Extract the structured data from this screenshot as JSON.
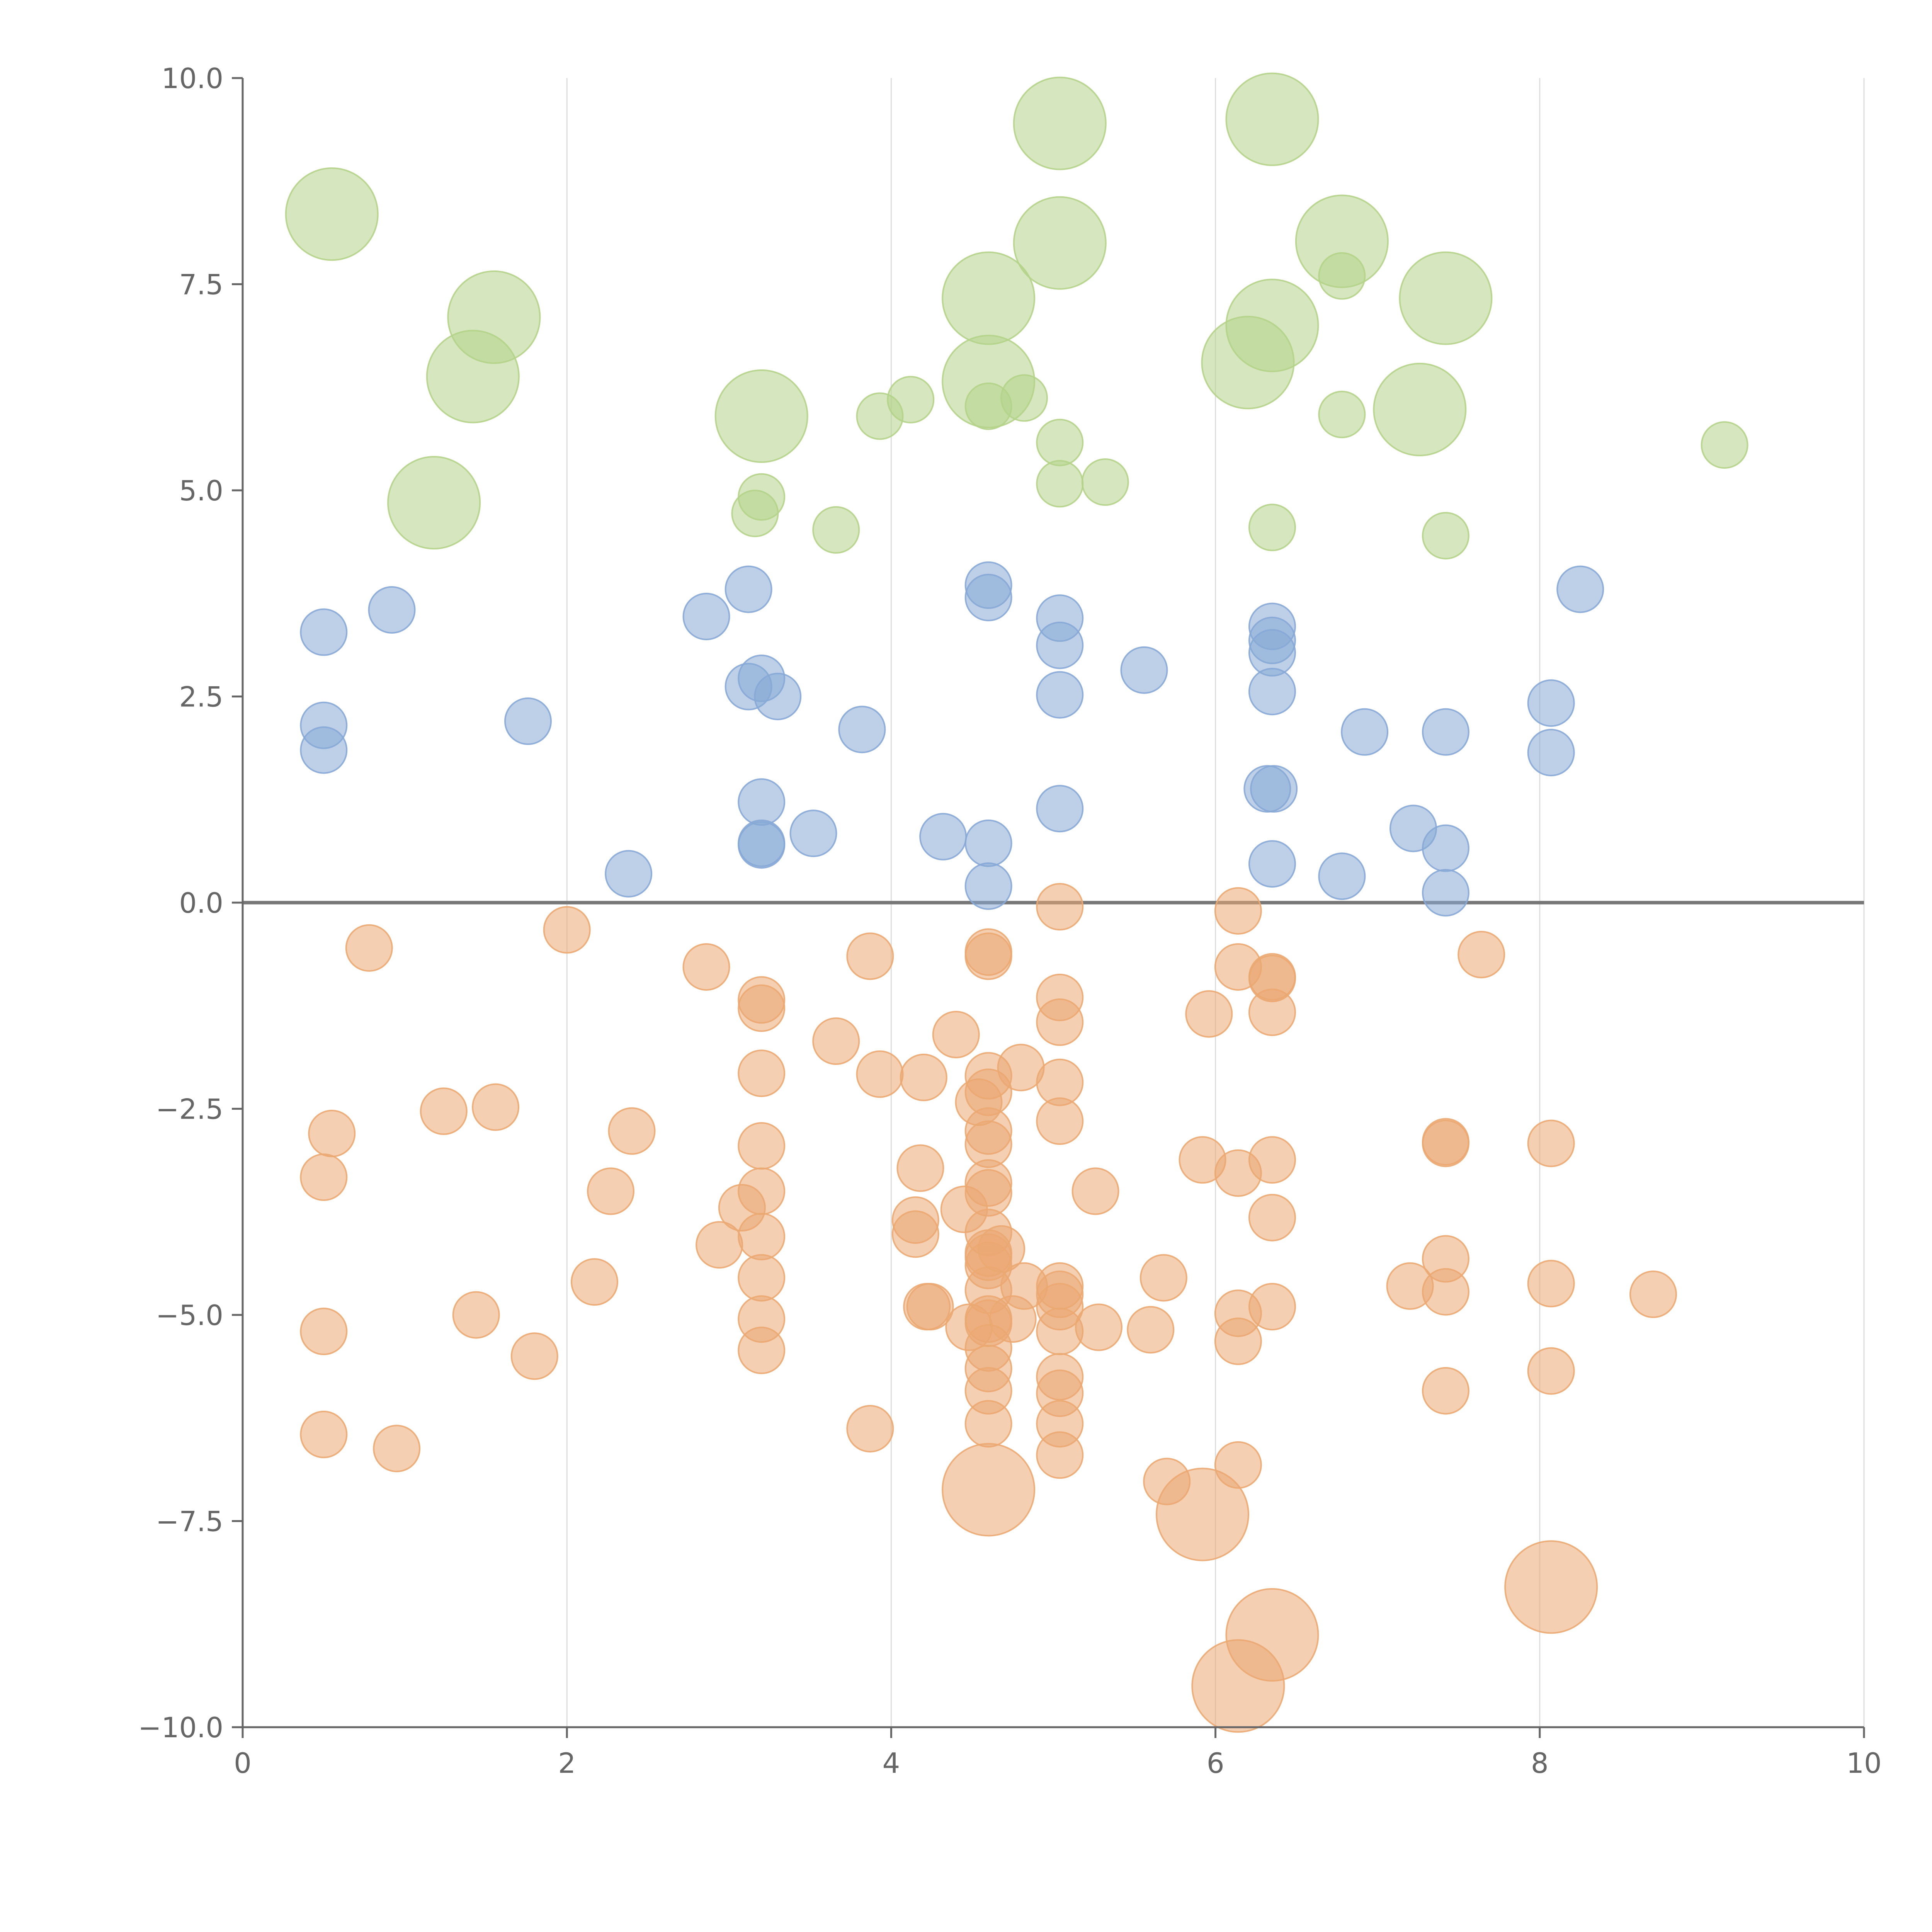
{
  "chart_data": {
    "type": "scatter",
    "title": "",
    "xlabel": "",
    "ylabel": "",
    "xlim": [
      0,
      10
    ],
    "ylim": [
      -10,
      10
    ],
    "x_ticks": [
      "0",
      "2",
      "4",
      "6",
      "8",
      "10"
    ],
    "y_ticks": [
      "10.0",
      "7.5",
      "5.0",
      "2.5",
      "0.0",
      "−2.5",
      "−5.0",
      "−7.5",
      "−10.0"
    ],
    "x_tick_values": [
      0,
      2,
      4,
      6,
      8,
      10
    ],
    "y_tick_values": [
      10,
      7.5,
      5,
      2.5,
      0,
      -2.5,
      -5,
      -7.5,
      -10
    ],
    "vertical_grid": true,
    "horizontal_grid": false,
    "zero_line": true,
    "colors": {
      "green": "#b5d38a",
      "blue": "#87a9d6",
      "orange": "#eba872"
    },
    "series": [
      {
        "color": "#b5d38a",
        "points": [
          [
            0.55,
            8.35,
            28
          ],
          [
            1.55,
            7.1,
            28
          ],
          [
            1.42,
            6.38,
            28
          ],
          [
            1.18,
            4.85,
            28
          ],
          [
            3.2,
            5.9,
            28
          ],
          [
            3.93,
            5.9,
            14
          ],
          [
            4.12,
            6.1,
            14
          ],
          [
            3.16,
            4.72,
            14
          ],
          [
            3.2,
            4.92,
            14
          ],
          [
            3.66,
            4.52,
            14
          ],
          [
            4.6,
            7.33,
            28
          ],
          [
            4.6,
            6.32,
            28
          ],
          [
            4.6,
            6.02,
            14
          ],
          [
            4.82,
            6.12,
            14
          ],
          [
            5.04,
            9.45,
            28
          ],
          [
            5.04,
            8.0,
            28
          ],
          [
            5.04,
            5.58,
            14
          ],
          [
            5.04,
            5.08,
            14
          ],
          [
            5.32,
            5.1,
            14
          ],
          [
            6.35,
            9.5,
            28
          ],
          [
            6.35,
            7.0,
            28
          ],
          [
            6.2,
            6.55,
            28
          ],
          [
            6.35,
            4.55,
            14
          ],
          [
            6.78,
            8.02,
            28
          ],
          [
            6.78,
            7.6,
            14
          ],
          [
            6.78,
            5.92,
            14
          ],
          [
            7.42,
            7.33,
            28
          ],
          [
            7.26,
            5.98,
            28
          ],
          [
            7.42,
            4.45,
            14
          ],
          [
            9.14,
            5.55,
            14
          ]
        ]
      },
      {
        "color": "#87a9d6",
        "points": [
          [
            0.5,
            3.28,
            14
          ],
          [
            0.5,
            2.15,
            14
          ],
          [
            0.5,
            1.85,
            14
          ],
          [
            0.92,
            3.55,
            14
          ],
          [
            1.76,
            2.2,
            14
          ],
          [
            2.38,
            0.35,
            14
          ],
          [
            2.86,
            3.47,
            14
          ],
          [
            3.12,
            3.8,
            14
          ],
          [
            3.12,
            2.62,
            14
          ],
          [
            3.2,
            2.72,
            14
          ],
          [
            3.3,
            2.5,
            14
          ],
          [
            3.2,
            1.22,
            14
          ],
          [
            3.2,
            0.7,
            14
          ],
          [
            3.2,
            0.72,
            14
          ],
          [
            3.52,
            0.84,
            14
          ],
          [
            3.82,
            2.1,
            14
          ],
          [
            4.32,
            0.8,
            14
          ],
          [
            4.6,
            3.85,
            14
          ],
          [
            4.6,
            3.7,
            14
          ],
          [
            4.6,
            0.72,
            14
          ],
          [
            4.6,
            0.2,
            14
          ],
          [
            5.04,
            3.45,
            14
          ],
          [
            5.04,
            3.12,
            14
          ],
          [
            5.04,
            2.52,
            14
          ],
          [
            5.04,
            1.14,
            14
          ],
          [
            5.56,
            2.82,
            14
          ],
          [
            6.35,
            3.35,
            14
          ],
          [
            6.35,
            3.18,
            14
          ],
          [
            6.35,
            3.03,
            14
          ],
          [
            6.35,
            2.56,
            14
          ],
          [
            6.32,
            1.38,
            14
          ],
          [
            6.36,
            1.38,
            14
          ],
          [
            6.35,
            0.47,
            14
          ],
          [
            6.78,
            0.32,
            14
          ],
          [
            6.92,
            2.07,
            14
          ],
          [
            7.22,
            0.9,
            14
          ],
          [
            7.42,
            2.07,
            14
          ],
          [
            7.42,
            0.66,
            14
          ],
          [
            7.42,
            0.12,
            14
          ],
          [
            8.07,
            2.42,
            14
          ],
          [
            8.07,
            1.82,
            14
          ],
          [
            8.25,
            3.8,
            14
          ]
        ]
      },
      {
        "color": "#eba872",
        "points": [
          [
            0.78,
            -0.55,
            14
          ],
          [
            0.55,
            -2.8,
            14
          ],
          [
            0.5,
            -3.33,
            14
          ],
          [
            0.5,
            -5.2,
            14
          ],
          [
            0.5,
            -6.45,
            14
          ],
          [
            0.95,
            -6.62,
            14
          ],
          [
            1.24,
            -2.53,
            14
          ],
          [
            1.56,
            -2.48,
            14
          ],
          [
            1.44,
            -5.0,
            14
          ],
          [
            1.8,
            -5.5,
            14
          ],
          [
            2.0,
            -0.33,
            14
          ],
          [
            2.4,
            -2.77,
            14
          ],
          [
            2.27,
            -3.5,
            14
          ],
          [
            2.17,
            -4.6,
            14
          ],
          [
            2.86,
            -0.78,
            14
          ],
          [
            2.94,
            -4.15,
            14
          ],
          [
            3.08,
            -3.7,
            14
          ],
          [
            3.2,
            -1.18,
            14
          ],
          [
            3.2,
            -1.28,
            14
          ],
          [
            3.2,
            -2.07,
            14
          ],
          [
            3.2,
            -2.95,
            14
          ],
          [
            3.2,
            -3.5,
            14
          ],
          [
            3.2,
            -4.05,
            14
          ],
          [
            3.2,
            -4.55,
            14
          ],
          [
            3.2,
            -5.05,
            14
          ],
          [
            3.2,
            -5.43,
            14
          ],
          [
            3.66,
            -1.68,
            14
          ],
          [
            3.87,
            -0.65,
            14
          ],
          [
            3.93,
            -2.08,
            14
          ],
          [
            3.87,
            -6.38,
            14
          ],
          [
            4.15,
            -3.85,
            14
          ],
          [
            4.15,
            -4.02,
            14
          ],
          [
            4.18,
            -3.22,
            14
          ],
          [
            4.2,
            -2.12,
            14
          ],
          [
            4.22,
            -4.9,
            14
          ],
          [
            4.24,
            -4.9,
            14
          ],
          [
            4.4,
            -1.6,
            14
          ],
          [
            4.45,
            -3.72,
            14
          ],
          [
            4.48,
            -5.15,
            14
          ],
          [
            4.54,
            -2.42,
            14
          ],
          [
            4.6,
            -0.6,
            14
          ],
          [
            4.6,
            -0.65,
            14
          ],
          [
            4.6,
            -2.1,
            14
          ],
          [
            4.6,
            -2.3,
            14
          ],
          [
            4.6,
            -2.77,
            14
          ],
          [
            4.6,
            -2.93,
            14
          ],
          [
            4.6,
            -3.4,
            14
          ],
          [
            4.6,
            -3.52,
            14
          ],
          [
            4.6,
            -4.0,
            14
          ],
          [
            4.6,
            -4.25,
            14
          ],
          [
            4.6,
            -4.3,
            14
          ],
          [
            4.6,
            -4.4,
            14
          ],
          [
            4.6,
            -4.7,
            14
          ],
          [
            4.6,
            -5.05,
            14
          ],
          [
            4.6,
            -5.1,
            14
          ],
          [
            4.6,
            -5.4,
            14
          ],
          [
            4.6,
            -5.65,
            14
          ],
          [
            4.6,
            -5.92,
            14
          ],
          [
            4.6,
            -6.32,
            14
          ],
          [
            4.6,
            -7.12,
            28
          ],
          [
            4.68,
            -4.2,
            14
          ],
          [
            4.75,
            -5.05,
            14
          ],
          [
            4.8,
            -2.0,
            14
          ],
          [
            4.82,
            -4.65,
            14
          ],
          [
            5.04,
            -0.05,
            14
          ],
          [
            5.04,
            -1.15,
            14
          ],
          [
            5.04,
            -1.45,
            14
          ],
          [
            5.04,
            -2.18,
            14
          ],
          [
            5.04,
            -2.65,
            14
          ],
          [
            5.04,
            -4.65,
            14
          ],
          [
            5.04,
            -4.75,
            14
          ],
          [
            5.04,
            -4.9,
            14
          ],
          [
            5.04,
            -5.2,
            14
          ],
          [
            5.04,
            -5.75,
            14
          ],
          [
            5.04,
            -5.95,
            14
          ],
          [
            5.04,
            -6.32,
            14
          ],
          [
            5.04,
            -6.7,
            14
          ],
          [
            5.26,
            -3.5,
            14
          ],
          [
            5.28,
            -5.15,
            14
          ],
          [
            5.6,
            -5.18,
            14
          ],
          [
            5.68,
            -4.55,
            14
          ],
          [
            5.7,
            -7.02,
            14
          ],
          [
            5.92,
            -3.12,
            14
          ],
          [
            5.92,
            -7.42,
            28
          ],
          [
            5.96,
            -1.35,
            14
          ],
          [
            6.14,
            -0.1,
            14
          ],
          [
            6.14,
            -0.78,
            14
          ],
          [
            6.14,
            -3.28,
            14
          ],
          [
            6.14,
            -4.98,
            14
          ],
          [
            6.14,
            -5.32,
            14
          ],
          [
            6.14,
            -6.82,
            14
          ],
          [
            6.14,
            -9.5,
            28
          ],
          [
            6.35,
            -0.9,
            14
          ],
          [
            6.35,
            -0.92,
            14
          ],
          [
            6.35,
            -1.33,
            14
          ],
          [
            6.35,
            -3.12,
            14
          ],
          [
            6.35,
            -3.82,
            14
          ],
          [
            6.35,
            -4.9,
            14
          ],
          [
            6.35,
            -8.88,
            28
          ],
          [
            7.2,
            -4.65,
            14
          ],
          [
            7.42,
            -2.9,
            14
          ],
          [
            7.42,
            -2.92,
            14
          ],
          [
            7.42,
            -4.32,
            14
          ],
          [
            7.42,
            -4.72,
            14
          ],
          [
            7.42,
            -5.92,
            14
          ],
          [
            7.64,
            -0.63,
            14
          ],
          [
            8.07,
            -2.92,
            14
          ],
          [
            8.07,
            -4.62,
            14
          ],
          [
            8.07,
            -5.68,
            14
          ],
          [
            8.07,
            -8.3,
            28
          ],
          [
            8.7,
            -4.75,
            14
          ]
        ]
      }
    ]
  }
}
